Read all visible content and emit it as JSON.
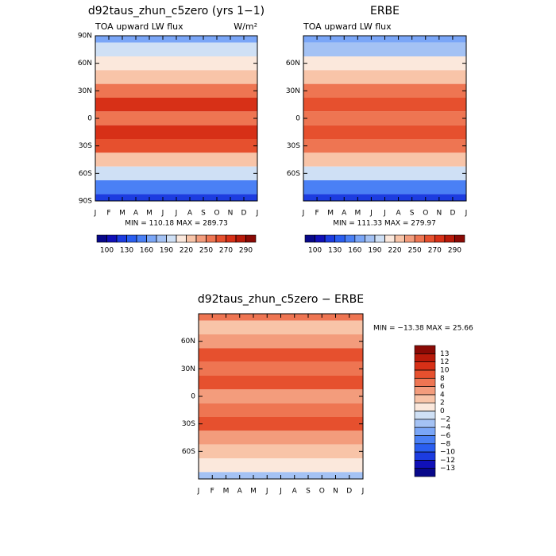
{
  "chart_data": [
    {
      "type": "contour",
      "title": "d92taus_zhun_c5zero (yrs 1−1)",
      "left_label": "TOA upward LW flux",
      "right_label": "W/m²",
      "categories": [
        "J",
        "F",
        "M",
        "A",
        "M",
        "J",
        "J",
        "A",
        "S",
        "O",
        "N",
        "D",
        "J"
      ],
      "ylim": [
        -90,
        90
      ],
      "yticks": [
        {
          "value": 90,
          "label": "90N"
        },
        {
          "value": 60,
          "label": "60N"
        },
        {
          "value": 30,
          "label": "30N"
        },
        0,
        {
          "value": -30,
          "label": "30S"
        },
        {
          "value": -60,
          "label": "60S"
        },
        {
          "value": -90,
          "label": "90S"
        }
      ],
      "stats": "MIN = 110.18 MAX = 289.73",
      "field": {
        "lat": [
          90,
          75,
          60,
          45,
          30,
          15,
          0,
          -15,
          -30,
          -45,
          -60,
          -75,
          -90
        ],
        "values": [
          170,
          190,
          205,
          225,
          255,
          275,
          255,
          270,
          260,
          225,
          195,
          150,
          120
        ]
      },
      "colorbar": {
        "orientation": "horizontal",
        "levels": [
          100,
          115,
          130,
          145,
          160,
          175,
          190,
          205,
          220,
          235,
          250,
          260,
          270,
          280,
          290
        ],
        "ticks": [
          100,
          130,
          160,
          190,
          220,
          250,
          270,
          290
        ],
        "colors": [
          "#08088a",
          "#1010b8",
          "#1c3ce0",
          "#2a5ef0",
          "#4a80f5",
          "#7aa6f7",
          "#a4c2f4",
          "#cfe0f5",
          "#fbe8dc",
          "#f8c4a8",
          "#f39c7c",
          "#ee7552",
          "#e6502e",
          "#d73017",
          "#b81a0a",
          "#8a0a05"
        ]
      }
    },
    {
      "type": "contour",
      "title": "ERBE",
      "left_label": "TOA upward LW flux",
      "categories": [
        "J",
        "F",
        "M",
        "A",
        "M",
        "J",
        "J",
        "A",
        "S",
        "O",
        "N",
        "D",
        "J"
      ],
      "ylim": [
        -90,
        90
      ],
      "yticks": [
        {
          "value": 60,
          "label": "60N"
        },
        {
          "value": 30,
          "label": "30N"
        },
        0,
        {
          "value": -30,
          "label": "30S"
        },
        {
          "value": -60,
          "label": "60S"
        }
      ],
      "stats": "MIN = 111.33 MAX = 279.97",
      "field": {
        "lat": [
          90,
          75,
          60,
          45,
          30,
          15,
          0,
          -15,
          -30,
          -45,
          -60,
          -75,
          -90
        ],
        "values": [
          160,
          185,
          205,
          225,
          250,
          265,
          250,
          262,
          250,
          220,
          195,
          150,
          125
        ]
      },
      "colorbar": {
        "orientation": "horizontal",
        "levels": [
          100,
          115,
          130,
          145,
          160,
          175,
          190,
          205,
          220,
          235,
          250,
          260,
          270,
          280,
          290
        ],
        "ticks": [
          100,
          130,
          160,
          190,
          220,
          250,
          270,
          290
        ],
        "colors": [
          "#08088a",
          "#1010b8",
          "#1c3ce0",
          "#2a5ef0",
          "#4a80f5",
          "#7aa6f7",
          "#a4c2f4",
          "#cfe0f5",
          "#fbe8dc",
          "#f8c4a8",
          "#f39c7c",
          "#ee7552",
          "#e6502e",
          "#d73017",
          "#b81a0a",
          "#8a0a05"
        ]
      }
    },
    {
      "type": "contour",
      "title": "d92taus_zhun_c5zero − ERBE",
      "categories": [
        "J",
        "F",
        "M",
        "A",
        "M",
        "J",
        "J",
        "A",
        "S",
        "O",
        "N",
        "D",
        "J"
      ],
      "ylim": [
        -90,
        90
      ],
      "yticks": [
        {
          "value": 60,
          "label": "60N"
        },
        {
          "value": 30,
          "label": "30N"
        },
        0,
        {
          "value": -30,
          "label": "30S"
        },
        {
          "value": -60,
          "label": "60S"
        }
      ],
      "stats": "MIN = −13.38 MAX =  25.66",
      "field": {
        "lat": [
          90,
          75,
          60,
          45,
          30,
          15,
          0,
          -15,
          -30,
          -45,
          -60,
          -75,
          -90
        ],
        "values": [
          7,
          3,
          5,
          9,
          6,
          9,
          5,
          7,
          9,
          4,
          3,
          1,
          -3
        ]
      },
      "colorbar": {
        "orientation": "vertical",
        "levels": [
          -13,
          -12,
          -10,
          -8,
          -6,
          -4,
          -2,
          0,
          2,
          4,
          6,
          8,
          10,
          12,
          13
        ],
        "ticks": [
          {
            "value": 13,
            "label": "13"
          },
          {
            "value": 12,
            "label": "12"
          },
          {
            "value": 10,
            "label": "10"
          },
          {
            "value": 8,
            "label": "8"
          },
          {
            "value": 6,
            "label": "6"
          },
          {
            "value": 4,
            "label": "4"
          },
          {
            "value": 2,
            "label": "2"
          },
          {
            "value": 0,
            "label": "0"
          },
          {
            "value": -2,
            "label": "−2"
          },
          {
            "value": -4,
            "label": "−4"
          },
          {
            "value": -6,
            "label": "−6"
          },
          {
            "value": -8,
            "label": "−8"
          },
          {
            "value": -10,
            "label": "−10"
          },
          {
            "value": -12,
            "label": "−12"
          },
          {
            "value": -13,
            "label": "−13"
          }
        ],
        "colors": [
          "#08088a",
          "#1010b8",
          "#1c3ce0",
          "#2a5ef0",
          "#4a80f5",
          "#7aa6f7",
          "#a4c2f4",
          "#cfe0f5",
          "#fbe8dc",
          "#f8c4a8",
          "#f39c7c",
          "#ee7552",
          "#e6502e",
          "#d73017",
          "#b81a0a",
          "#8a0a05"
        ]
      }
    }
  ]
}
